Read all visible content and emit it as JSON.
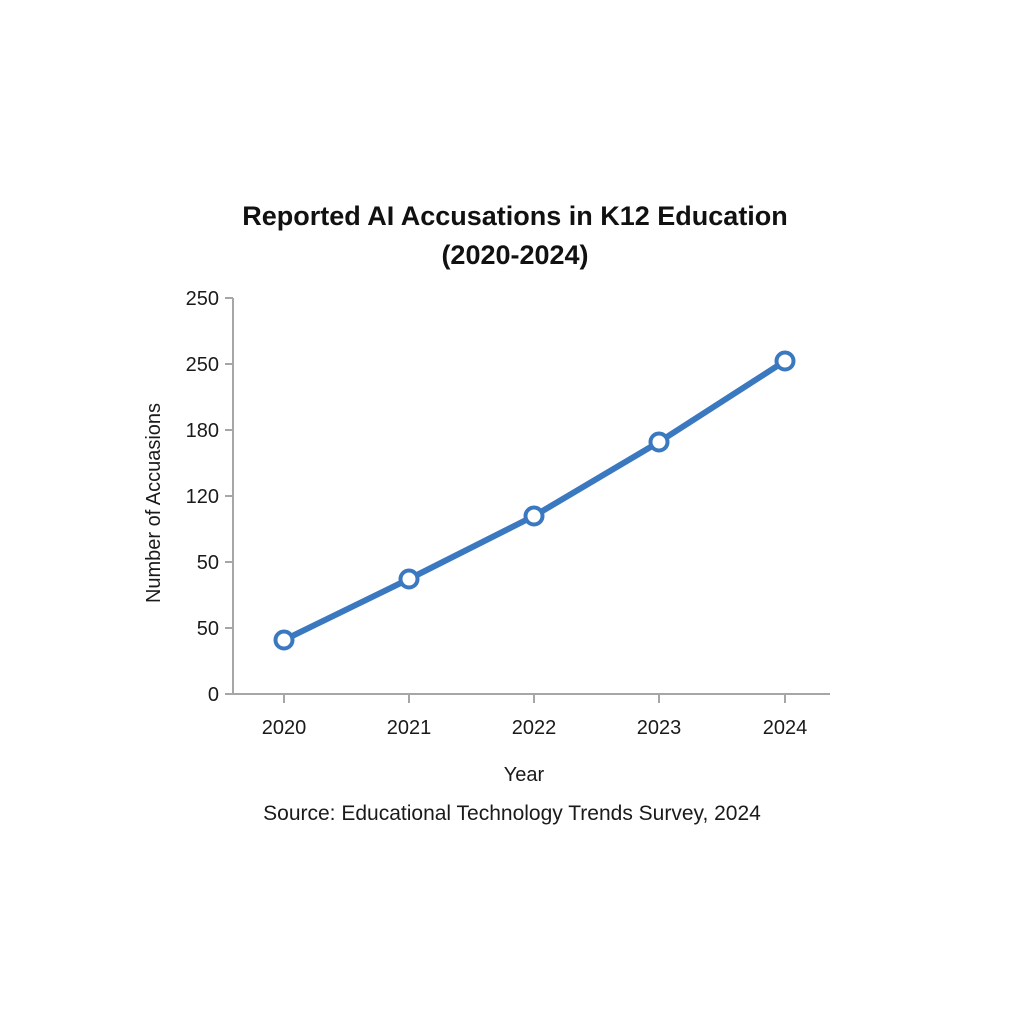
{
  "chart_data": {
    "type": "line",
    "title": "Reported AI Accusations in K12 Education",
    "subtitle": "(2020-2024)",
    "xlabel": "Year",
    "ylabel": "Number of Accuasions",
    "categories": [
      "2020",
      "2021",
      "2022",
      "2023",
      "2024"
    ],
    "series": [
      {
        "name": "Reported AI Accusations",
        "values": [
          40,
          75,
          100,
          170,
          250
        ],
        "color": "#3a78c0",
        "marker": "open-circle"
      }
    ],
    "y_tick_labels": [
      "0",
      "50",
      "50",
      "120",
      "180",
      "250",
      "250"
    ],
    "ylim": [
      0,
      250
    ],
    "grid": false,
    "legend": "none",
    "source": "Source: Educational Technology Trends Survey, 2024"
  },
  "colors": {
    "line": "#3a78c0",
    "axis": "#a6a6a6",
    "text": "#1a1a1a",
    "background": "#ffffff"
  }
}
